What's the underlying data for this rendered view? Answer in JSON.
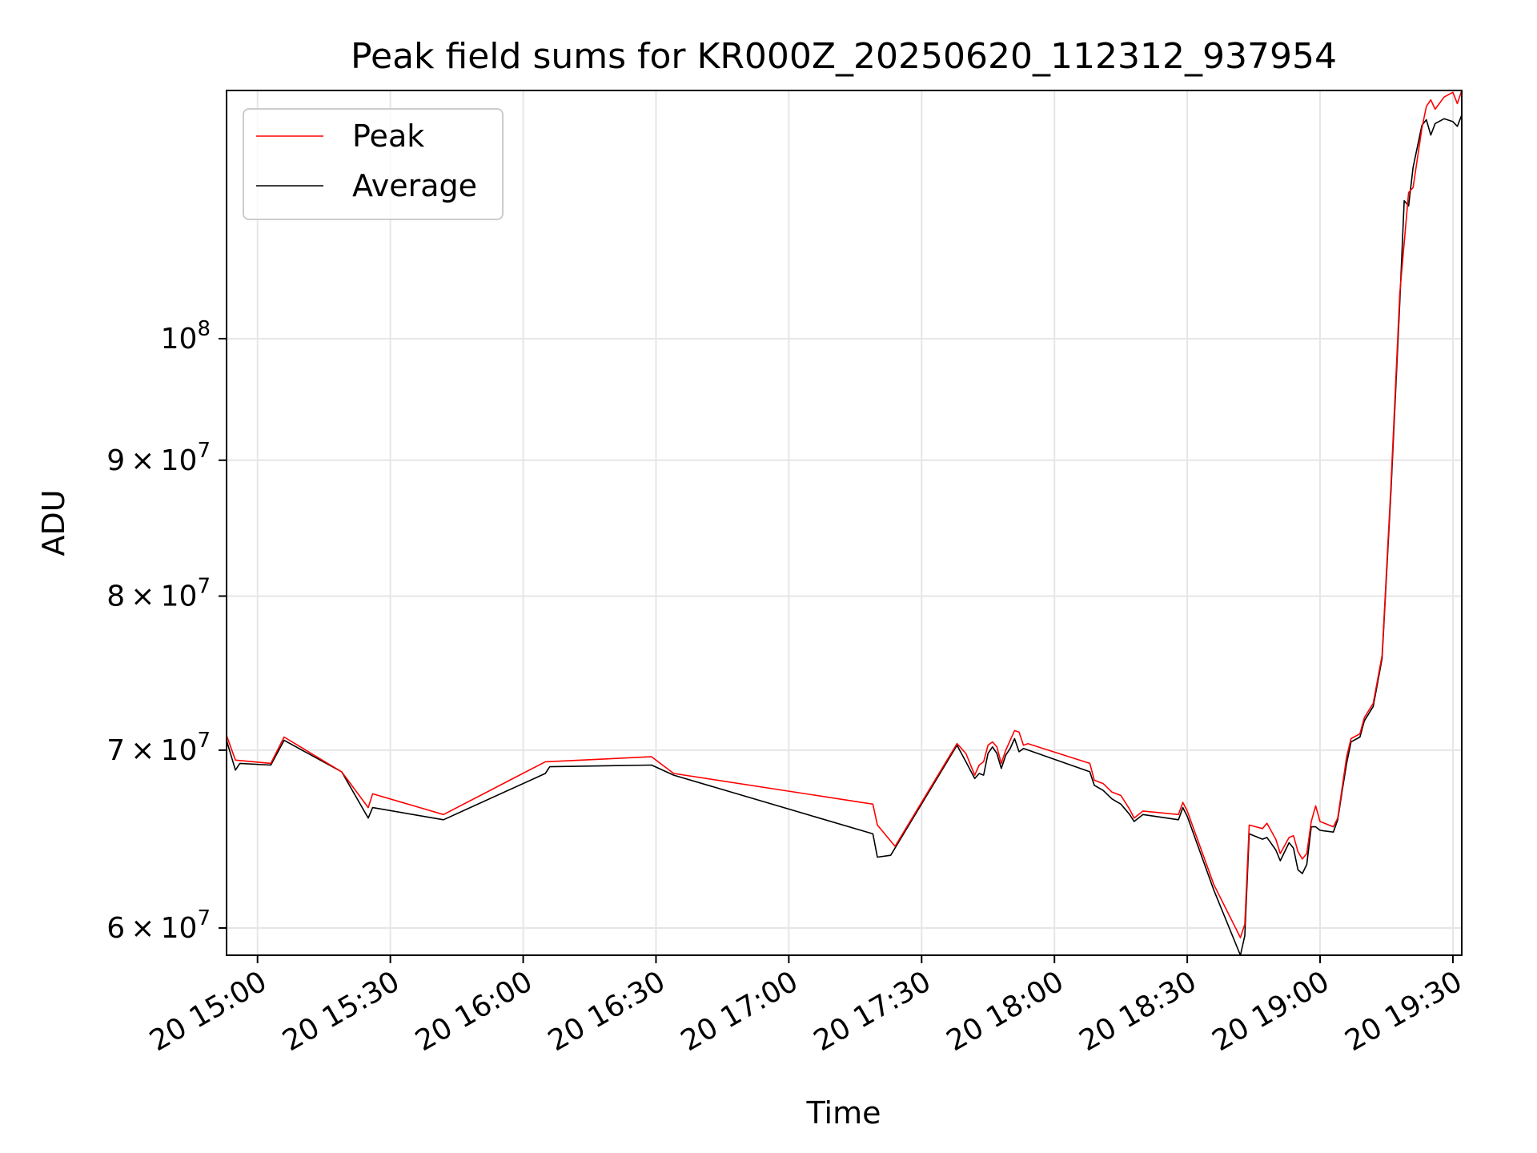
{
  "chart_data": {
    "type": "line",
    "title": "Peak field sums for KR000Z_20250620_112312_937954",
    "xlabel": "Time",
    "ylabel": "ADU",
    "x_scale": "time",
    "y_scale": "log",
    "ylim": [
      58600000,
      124000000
    ],
    "xlim": [
      "2025-06-20 14:53",
      "2025-06-20 19:32"
    ],
    "x_ticks": [
      {
        "t": "2025-06-20 15:00",
        "label": "20 15:00"
      },
      {
        "t": "2025-06-20 15:30",
        "label": "20 15:30"
      },
      {
        "t": "2025-06-20 16:00",
        "label": "20 16:00"
      },
      {
        "t": "2025-06-20 16:30",
        "label": "20 16:30"
      },
      {
        "t": "2025-06-20 17:00",
        "label": "20 17:00"
      },
      {
        "t": "2025-06-20 17:30",
        "label": "20 17:30"
      },
      {
        "t": "2025-06-20 18:00",
        "label": "20 18:00"
      },
      {
        "t": "2025-06-20 18:30",
        "label": "20 18:30"
      },
      {
        "t": "2025-06-20 19:00",
        "label": "20 19:00"
      },
      {
        "t": "2025-06-20 19:30",
        "label": "20 19:30"
      }
    ],
    "y_ticks": [
      {
        "value": 60000000,
        "mant": "6",
        "exp": "7"
      },
      {
        "value": 70000000,
        "mant": "7",
        "exp": "7"
      },
      {
        "value": 80000000,
        "mant": "8",
        "exp": "7"
      },
      {
        "value": 90000000,
        "mant": "9",
        "exp": "7"
      },
      {
        "value": 100000000,
        "mant": "",
        "exp": "8"
      }
    ],
    "grid": true,
    "legend_position": "top-left",
    "series": [
      {
        "name": "Peak",
        "color": "#ff0000",
        "points": [
          [
            "2025-06-20 14:53",
            70900000
          ],
          [
            "2025-06-20 14:55",
            69400000
          ],
          [
            "2025-06-20 15:03",
            69200000
          ],
          [
            "2025-06-20 15:06",
            70800000
          ],
          [
            "2025-06-20 15:19",
            68700000
          ],
          [
            "2025-06-20 15:25",
            66600000
          ],
          [
            "2025-06-20 15:26",
            67400000
          ],
          [
            "2025-06-20 15:42",
            66200000
          ],
          [
            "2025-06-20 16:05",
            69300000
          ],
          [
            "2025-06-20 16:29",
            69600000
          ],
          [
            "2025-06-20 16:34",
            68600000
          ],
          [
            "2025-06-20 17:19",
            66800000
          ],
          [
            "2025-06-20 17:20",
            65600000
          ],
          [
            "2025-06-20 17:24",
            64400000
          ],
          [
            "2025-06-20 17:38",
            70400000
          ],
          [
            "2025-06-20 17:40",
            69800000
          ],
          [
            "2025-06-20 17:42",
            68500000
          ],
          [
            "2025-06-20 17:43",
            69100000
          ],
          [
            "2025-06-20 17:44",
            69300000
          ],
          [
            "2025-06-20 17:45",
            70300000
          ],
          [
            "2025-06-20 17:46",
            70500000
          ],
          [
            "2025-06-20 17:47",
            70200000
          ],
          [
            "2025-06-20 17:48",
            69200000
          ],
          [
            "2025-06-20 17:49",
            70000000
          ],
          [
            "2025-06-20 17:50",
            70600000
          ],
          [
            "2025-06-20 17:51",
            71200000
          ],
          [
            "2025-06-20 17:52",
            71100000
          ],
          [
            "2025-06-20 17:53",
            70300000
          ],
          [
            "2025-06-20 17:54",
            70400000
          ],
          [
            "2025-06-20 18:08",
            69200000
          ],
          [
            "2025-06-20 18:09",
            68200000
          ],
          [
            "2025-06-20 18:11",
            68000000
          ],
          [
            "2025-06-20 18:13",
            67500000
          ],
          [
            "2025-06-20 18:15",
            67300000
          ],
          [
            "2025-06-20 18:17",
            66500000
          ],
          [
            "2025-06-20 18:18",
            66000000
          ],
          [
            "2025-06-20 18:20",
            66400000
          ],
          [
            "2025-06-20 18:28",
            66200000
          ],
          [
            "2025-06-20 18:29",
            66900000
          ],
          [
            "2025-06-20 18:30",
            66400000
          ],
          [
            "2025-06-20 18:36",
            62300000
          ],
          [
            "2025-06-20 18:42",
            59500000
          ],
          [
            "2025-06-20 18:43",
            60200000
          ],
          [
            "2025-06-20 18:44",
            65600000
          ],
          [
            "2025-06-20 18:47",
            65400000
          ],
          [
            "2025-06-20 18:48",
            65700000
          ],
          [
            "2025-06-20 18:50",
            64800000
          ],
          [
            "2025-06-20 18:51",
            64000000
          ],
          [
            "2025-06-20 18:53",
            64900000
          ],
          [
            "2025-06-20 18:54",
            65000000
          ],
          [
            "2025-06-20 18:55",
            64100000
          ],
          [
            "2025-06-20 18:56",
            63700000
          ],
          [
            "2025-06-20 18:57",
            64000000
          ],
          [
            "2025-06-20 18:58",
            65800000
          ],
          [
            "2025-06-20 18:59",
            66700000
          ],
          [
            "2025-06-20 19:00",
            65800000
          ],
          [
            "2025-06-20 19:03",
            65500000
          ],
          [
            "2025-06-20 19:04",
            66000000
          ],
          [
            "2025-06-20 19:05",
            67800000
          ],
          [
            "2025-06-20 19:06",
            69600000
          ],
          [
            "2025-06-20 19:07",
            70700000
          ],
          [
            "2025-06-20 19:09",
            71000000
          ],
          [
            "2025-06-20 19:10",
            72000000
          ],
          [
            "2025-06-20 19:12",
            72900000
          ],
          [
            "2025-06-20 19:14",
            76000000
          ],
          [
            "2025-06-20 19:16",
            88000000
          ],
          [
            "2025-06-20 19:18",
            104000000
          ],
          [
            "2025-06-20 19:20",
            113500000
          ],
          [
            "2025-06-20 19:21",
            114000000
          ],
          [
            "2025-06-20 19:23",
            120000000
          ],
          [
            "2025-06-20 19:24",
            122300000
          ],
          [
            "2025-06-20 19:25",
            123000000
          ],
          [
            "2025-06-20 19:26",
            122000000
          ],
          [
            "2025-06-20 19:28",
            123300000
          ],
          [
            "2025-06-20 19:30",
            123800000
          ],
          [
            "2025-06-20 19:31",
            122600000
          ],
          [
            "2025-06-20 19:32",
            124000000
          ]
        ]
      },
      {
        "name": "Average",
        "color": "#000000",
        "points": [
          [
            "2025-06-20 14:53",
            70600000
          ],
          [
            "2025-06-20 14:55",
            68800000
          ],
          [
            "2025-06-20 14:56",
            69200000
          ],
          [
            "2025-06-20 15:03",
            69100000
          ],
          [
            "2025-06-20 15:06",
            70600000
          ],
          [
            "2025-06-20 15:19",
            68700000
          ],
          [
            "2025-06-20 15:25",
            66000000
          ],
          [
            "2025-06-20 15:26",
            66600000
          ],
          [
            "2025-06-20 15:42",
            65900000
          ],
          [
            "2025-06-20 16:05",
            68600000
          ],
          [
            "2025-06-20 16:06",
            69000000
          ],
          [
            "2025-06-20 16:29",
            69100000
          ],
          [
            "2025-06-20 16:34",
            68500000
          ],
          [
            "2025-06-20 17:19",
            65100000
          ],
          [
            "2025-06-20 17:20",
            63800000
          ],
          [
            "2025-06-20 17:23",
            63900000
          ],
          [
            "2025-06-20 17:38",
            70300000
          ],
          [
            "2025-06-20 17:40",
            69300000
          ],
          [
            "2025-06-20 17:42",
            68300000
          ],
          [
            "2025-06-20 17:43",
            68600000
          ],
          [
            "2025-06-20 17:44",
            68500000
          ],
          [
            "2025-06-20 17:45",
            69800000
          ],
          [
            "2025-06-20 17:46",
            70200000
          ],
          [
            "2025-06-20 17:47",
            69800000
          ],
          [
            "2025-06-20 17:48",
            68900000
          ],
          [
            "2025-06-20 17:49",
            69700000
          ],
          [
            "2025-06-20 17:50",
            70100000
          ],
          [
            "2025-06-20 17:51",
            70700000
          ],
          [
            "2025-06-20 17:52",
            69900000
          ],
          [
            "2025-06-20 17:53",
            70100000
          ],
          [
            "2025-06-20 18:08",
            68700000
          ],
          [
            "2025-06-20 18:09",
            67900000
          ],
          [
            "2025-06-20 18:11",
            67600000
          ],
          [
            "2025-06-20 18:13",
            67100000
          ],
          [
            "2025-06-20 18:15",
            66800000
          ],
          [
            "2025-06-20 18:17",
            66200000
          ],
          [
            "2025-06-20 18:18",
            65800000
          ],
          [
            "2025-06-20 18:20",
            66200000
          ],
          [
            "2025-06-20 18:28",
            65900000
          ],
          [
            "2025-06-20 18:29",
            66600000
          ],
          [
            "2025-06-20 18:30",
            66100000
          ],
          [
            "2025-06-20 18:36",
            62000000
          ],
          [
            "2025-06-20 18:42",
            58600000
          ],
          [
            "2025-06-20 18:43",
            59600000
          ],
          [
            "2025-06-20 18:44",
            65100000
          ],
          [
            "2025-06-20 18:47",
            64800000
          ],
          [
            "2025-06-20 18:48",
            64900000
          ],
          [
            "2025-06-20 18:50",
            64200000
          ],
          [
            "2025-06-20 18:51",
            63600000
          ],
          [
            "2025-06-20 18:53",
            64600000
          ],
          [
            "2025-06-20 18:54",
            64300000
          ],
          [
            "2025-06-20 18:55",
            63100000
          ],
          [
            "2025-06-20 18:56",
            62900000
          ],
          [
            "2025-06-20 18:57",
            63400000
          ],
          [
            "2025-06-20 18:58",
            65500000
          ],
          [
            "2025-06-20 18:59",
            65500000
          ],
          [
            "2025-06-20 19:00",
            65300000
          ],
          [
            "2025-06-20 19:03",
            65200000
          ],
          [
            "2025-06-20 19:04",
            65900000
          ],
          [
            "2025-06-20 19:05",
            67600000
          ],
          [
            "2025-06-20 19:06",
            69200000
          ],
          [
            "2025-06-20 19:07",
            70500000
          ],
          [
            "2025-06-20 19:09",
            70800000
          ],
          [
            "2025-06-20 19:10",
            71800000
          ],
          [
            "2025-06-20 19:12",
            72700000
          ],
          [
            "2025-06-20 19:14",
            75800000
          ],
          [
            "2025-06-20 19:16",
            87500000
          ],
          [
            "2025-06-20 19:18",
            103200000
          ],
          [
            "2025-06-20 19:19",
            112700000
          ],
          [
            "2025-06-20 19:20",
            112200000
          ],
          [
            "2025-06-20 19:21",
            116000000
          ],
          [
            "2025-06-20 19:23",
            120300000
          ],
          [
            "2025-06-20 19:24",
            120900000
          ],
          [
            "2025-06-20 19:25",
            119300000
          ],
          [
            "2025-06-20 19:26",
            120500000
          ],
          [
            "2025-06-20 19:28",
            121000000
          ],
          [
            "2025-06-20 19:30",
            120700000
          ],
          [
            "2025-06-20 19:31",
            120200000
          ],
          [
            "2025-06-20 19:32",
            121400000
          ]
        ]
      }
    ]
  }
}
